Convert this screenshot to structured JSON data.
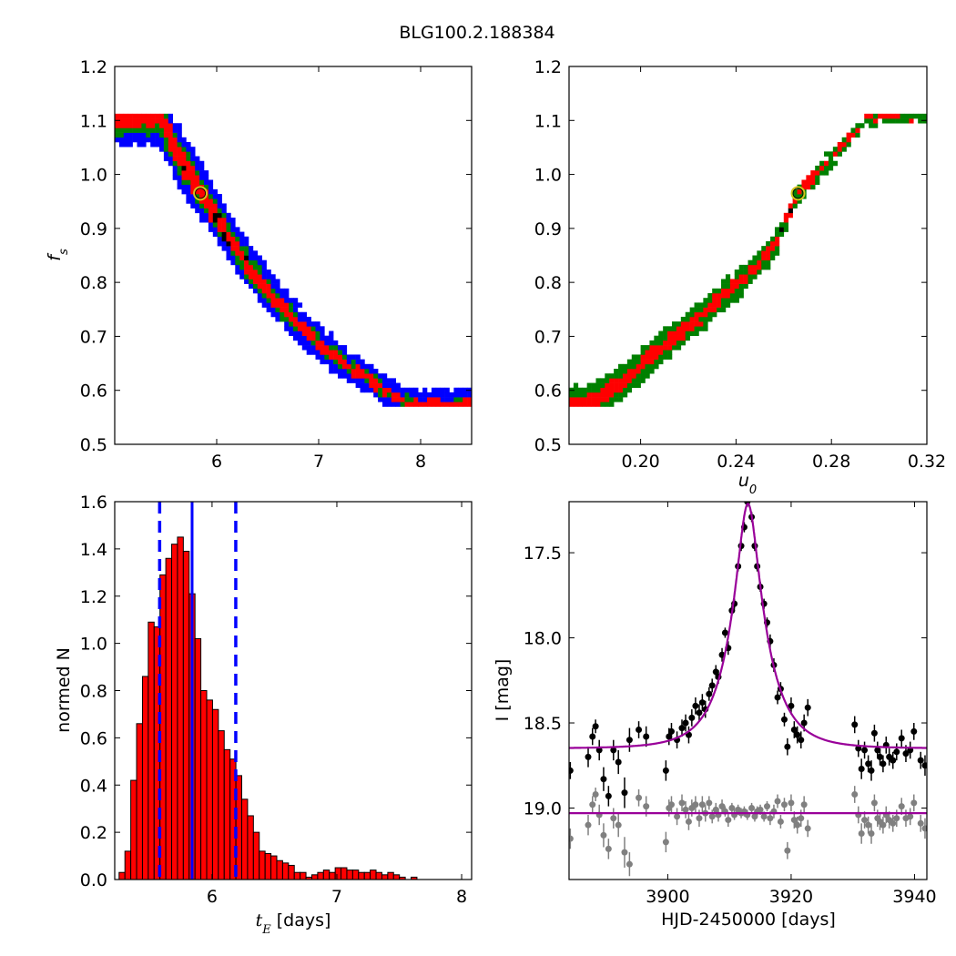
{
  "title": "BLG100.2.188384",
  "chart_data": [
    {
      "panel": "top-left",
      "type": "heatmap",
      "xlabel": "",
      "ylabel": "f_s",
      "xlim": [
        5.0,
        8.5
      ],
      "ylim": [
        0.5,
        1.2
      ],
      "xticks": [
        "6",
        "7",
        "8"
      ],
      "xtick_values": [
        6,
        7,
        8
      ],
      "yticks": [
        "0.5",
        "0.6",
        "0.7",
        "0.8",
        "0.9",
        "1.0",
        "1.1",
        "1.2"
      ],
      "ytick_values": [
        0.5,
        0.6,
        0.7,
        0.8,
        0.9,
        1.0,
        1.1,
        1.2
      ],
      "colors": {
        "outer": "#0000ff",
        "middle": "#008000",
        "inner": "#ff0000",
        "core": "#000000"
      },
      "band_centerline": [
        [
          5.44,
          1.11
        ],
        [
          5.6,
          1.04
        ],
        [
          5.85,
          0.965
        ],
        [
          6.1,
          0.89
        ],
        [
          6.35,
          0.82
        ],
        [
          6.6,
          0.76
        ],
        [
          6.85,
          0.71
        ],
        [
          7.1,
          0.67
        ],
        [
          7.4,
          0.63
        ],
        [
          7.7,
          0.595
        ],
        [
          7.9,
          0.575
        ]
      ],
      "best_fit": {
        "x": 5.84,
        "y": 0.965,
        "color": "#d4c51b"
      }
    },
    {
      "panel": "top-right",
      "type": "heatmap",
      "xlabel": "u_0",
      "ylabel": "",
      "xlim": [
        0.17,
        0.32
      ],
      "ylim": [
        0.5,
        1.2
      ],
      "xticks": [
        "0.20",
        "0.24",
        "0.28",
        "0.32"
      ],
      "xtick_values": [
        0.2,
        0.24,
        0.28,
        0.32
      ],
      "yticks": [
        "0.5",
        "0.6",
        "0.7",
        "0.8",
        "0.9",
        "1.0",
        "1.1",
        "1.2"
      ],
      "ytick_values": [
        0.5,
        0.6,
        0.7,
        0.8,
        0.9,
        1.0,
        1.1,
        1.2
      ],
      "colors": {
        "outer": "#0000ff",
        "middle": "#008000",
        "inner": "#ff0000",
        "core": "#000000"
      },
      "band_centerline": [
        [
          0.18,
          0.575
        ],
        [
          0.2,
          0.645
        ],
        [
          0.22,
          0.72
        ],
        [
          0.24,
          0.795
        ],
        [
          0.255,
          0.86
        ],
        [
          0.266,
          0.965
        ],
        [
          0.28,
          1.03
        ],
        [
          0.295,
          1.105
        ]
      ],
      "best_fit": {
        "x": 0.266,
        "y": 0.965,
        "color": "#d4c51b"
      }
    },
    {
      "panel": "bottom-left",
      "type": "bar",
      "xlabel": "t_E [days]",
      "ylabel": "normed N",
      "xlim": [
        5.22,
        8.08
      ],
      "ylim": [
        0.0,
        1.6
      ],
      "xticks": [
        "6",
        "7",
        "8"
      ],
      "xtick_values": [
        6,
        7,
        8
      ],
      "yticks": [
        "0.0",
        "0.2",
        "0.4",
        "0.6",
        "0.8",
        "1.0",
        "1.2",
        "1.4",
        "1.6"
      ],
      "ytick_values": [
        0.0,
        0.2,
        0.4,
        0.6,
        0.8,
        1.0,
        1.2,
        1.4,
        1.6
      ],
      "bin_start": 5.255,
      "bin_width": 0.0468,
      "values": [
        0.03,
        0.12,
        0.42,
        0.66,
        0.86,
        1.09,
        1.07,
        1.29,
        1.36,
        1.42,
        1.45,
        1.39,
        1.21,
        1.02,
        0.8,
        0.76,
        0.72,
        0.63,
        0.55,
        0.51,
        0.44,
        0.34,
        0.27,
        0.2,
        0.12,
        0.11,
        0.1,
        0.08,
        0.07,
        0.06,
        0.03,
        0.03,
        0.01,
        0.02,
        0.03,
        0.04,
        0.03,
        0.05,
        0.05,
        0.04,
        0.04,
        0.03,
        0.03,
        0.04,
        0.03,
        0.02,
        0.03,
        0.02,
        0.01,
        0.0,
        0.01
      ],
      "bar_color": "#ff0000",
      "median_line": 5.84,
      "interval_lines": [
        5.58,
        6.19
      ],
      "line_color": "#0000ff"
    },
    {
      "panel": "bottom-right",
      "type": "scatter",
      "xlabel": "HJD-2450000 [days]",
      "ylabel": "I [mag]",
      "xlim": [
        3884,
        3942
      ],
      "ylim": [
        19.42,
        17.2
      ],
      "yaxis_inverted": true,
      "xticks": [
        "3900",
        "3920",
        "3940"
      ],
      "xtick_values": [
        3900,
        3920,
        3940
      ],
      "yticks": [
        "17.5",
        "18.0",
        "18.5",
        "19.0"
      ],
      "ytick_values": [
        17.5,
        18.0,
        18.5,
        19.0
      ],
      "model": {
        "t0": 3913.0,
        "tE": 5.84,
        "u0": 0.266,
        "fs": 0.965,
        "I_base": 18.65,
        "color": "#990099"
      },
      "residual_baseline": 19.03,
      "series": [
        {
          "name": "",
          "color": "#000000",
          "points": [
            [
              3884.2,
              18.78,
              0.05
            ],
            [
              3887.1,
              18.7,
              0.06
            ],
            [
              3887.8,
              18.58,
              0.05
            ],
            [
              3888.3,
              18.52,
              0.04
            ],
            [
              3888.9,
              18.66,
              0.06
            ],
            [
              3889.6,
              18.83,
              0.07
            ],
            [
              3890.4,
              18.93,
              0.06
            ],
            [
              3891.2,
              18.66,
              0.06
            ],
            [
              3892.0,
              18.73,
              0.07
            ],
            [
              3893.0,
              18.91,
              0.09
            ],
            [
              3893.8,
              18.6,
              0.07
            ],
            [
              3895.3,
              18.54,
              0.05
            ],
            [
              3896.5,
              18.58,
              0.06
            ],
            [
              3899.7,
              18.78,
              0.06
            ],
            [
              3900.2,
              18.58,
              0.05
            ],
            [
              3900.6,
              18.55,
              0.05
            ],
            [
              3901.5,
              18.6,
              0.05
            ],
            [
              3902.3,
              18.53,
              0.05
            ],
            [
              3902.9,
              18.5,
              0.05
            ],
            [
              3903.4,
              18.57,
              0.05
            ],
            [
              3903.9,
              18.47,
              0.05
            ],
            [
              3904.5,
              18.4,
              0.05
            ],
            [
              3905.1,
              18.44,
              0.05
            ],
            [
              3905.6,
              18.38,
              0.05
            ],
            [
              3906.1,
              18.42,
              0.05
            ],
            [
              3906.7,
              18.33,
              0.04
            ],
            [
              3907.2,
              18.28,
              0.04
            ],
            [
              3907.8,
              18.2,
              0.04
            ],
            [
              3908.2,
              18.23,
              0.04
            ],
            [
              3908.8,
              18.1,
              0.04
            ],
            [
              3909.3,
              17.97,
              0.03
            ],
            [
              3909.8,
              18.06,
              0.04
            ],
            [
              3910.4,
              17.84,
              0.03
            ],
            [
              3910.8,
              17.8,
              0.03
            ],
            [
              3911.4,
              17.58,
              0.03
            ],
            [
              3911.9,
              17.46,
              0.03
            ],
            [
              3912.4,
              17.35,
              0.03
            ],
            [
              3912.9,
              17.2,
              0.03
            ],
            [
              3913.6,
              17.29,
              0.03
            ],
            [
              3914.1,
              17.46,
              0.03
            ],
            [
              3914.5,
              17.58,
              0.03
            ],
            [
              3915.0,
              17.7,
              0.03
            ],
            [
              3915.6,
              17.8,
              0.03
            ],
            [
              3916.1,
              17.91,
              0.03
            ],
            [
              3916.6,
              18.02,
              0.04
            ],
            [
              3917.2,
              18.16,
              0.04
            ],
            [
              3917.8,
              18.35,
              0.04
            ],
            [
              3918.3,
              18.3,
              0.04
            ],
            [
              3918.9,
              18.48,
              0.04
            ],
            [
              3919.4,
              18.64,
              0.05
            ],
            [
              3920.0,
              18.4,
              0.05
            ],
            [
              3920.5,
              18.54,
              0.05
            ],
            [
              3921.0,
              18.57,
              0.05
            ],
            [
              3921.6,
              18.6,
              0.05
            ],
            [
              3922.1,
              18.5,
              0.05
            ],
            [
              3922.7,
              18.41,
              0.05
            ],
            [
              3930.3,
              18.51,
              0.05
            ],
            [
              3930.9,
              18.65,
              0.05
            ],
            [
              3931.4,
              18.77,
              0.06
            ],
            [
              3931.9,
              18.66,
              0.05
            ],
            [
              3932.5,
              18.74,
              0.05
            ],
            [
              3933.0,
              18.78,
              0.06
            ],
            [
              3933.5,
              18.56,
              0.05
            ],
            [
              3934.0,
              18.66,
              0.05
            ],
            [
              3934.4,
              18.7,
              0.05
            ],
            [
              3934.9,
              18.74,
              0.05
            ],
            [
              3935.4,
              18.63,
              0.05
            ],
            [
              3935.9,
              18.7,
              0.05
            ],
            [
              3936.5,
              18.72,
              0.05
            ],
            [
              3937.1,
              18.67,
              0.05
            ],
            [
              3937.9,
              18.59,
              0.05
            ],
            [
              3938.6,
              18.68,
              0.05
            ],
            [
              3939.3,
              18.66,
              0.05
            ],
            [
              3939.9,
              18.55,
              0.05
            ],
            [
              3941.0,
              18.72,
              0.05
            ],
            [
              3941.7,
              18.75,
              0.06
            ]
          ]
        },
        {
          "name": "",
          "color": "#808080",
          "points": [
            [
              3884.2,
              19.18,
              0.06
            ],
            [
              3887.1,
              19.1,
              0.06
            ],
            [
              3887.8,
              18.98,
              0.05
            ],
            [
              3888.3,
              18.92,
              0.04
            ],
            [
              3888.9,
              19.04,
              0.06
            ],
            [
              3889.6,
              19.16,
              0.07
            ],
            [
              3890.4,
              19.24,
              0.06
            ],
            [
              3891.2,
              19.06,
              0.06
            ],
            [
              3892.0,
              19.1,
              0.07
            ],
            [
              3893.0,
              19.26,
              0.09
            ],
            [
              3893.8,
              19.33,
              0.07
            ],
            [
              3895.3,
              18.94,
              0.05
            ],
            [
              3896.5,
              18.99,
              0.06
            ],
            [
              3899.7,
              19.2,
              0.06
            ],
            [
              3900.2,
              19.0,
              0.05
            ],
            [
              3900.6,
              18.98,
              0.05
            ],
            [
              3901.5,
              19.05,
              0.05
            ],
            [
              3902.3,
              18.97,
              0.05
            ],
            [
              3902.9,
              19.01,
              0.05
            ],
            [
              3903.4,
              19.08,
              0.05
            ],
            [
              3903.9,
              19.0,
              0.05
            ],
            [
              3904.5,
              18.98,
              0.05
            ],
            [
              3905.1,
              19.06,
              0.05
            ],
            [
              3905.6,
              18.98,
              0.05
            ],
            [
              3906.1,
              19.03,
              0.05
            ],
            [
              3906.7,
              18.97,
              0.04
            ],
            [
              3907.2,
              19.05,
              0.04
            ],
            [
              3907.8,
              19.01,
              0.04
            ],
            [
              3908.2,
              19.04,
              0.04
            ],
            [
              3908.8,
              18.99,
              0.04
            ],
            [
              3909.3,
              19.02,
              0.03
            ],
            [
              3909.8,
              19.07,
              0.04
            ],
            [
              3910.4,
              19.0,
              0.03
            ],
            [
              3910.8,
              19.04,
              0.03
            ],
            [
              3911.4,
              19.01,
              0.03
            ],
            [
              3911.9,
              19.03,
              0.03
            ],
            [
              3912.4,
              19.02,
              0.03
            ],
            [
              3912.9,
              19.04,
              0.03
            ],
            [
              3913.6,
              19.0,
              0.03
            ],
            [
              3914.1,
              19.05,
              0.03
            ],
            [
              3914.5,
              19.02,
              0.03
            ],
            [
              3915.0,
              19.01,
              0.03
            ],
            [
              3915.6,
              19.05,
              0.03
            ],
            [
              3916.1,
              18.99,
              0.03
            ],
            [
              3916.6,
              19.06,
              0.04
            ],
            [
              3917.2,
              19.02,
              0.04
            ],
            [
              3917.8,
              18.96,
              0.04
            ],
            [
              3918.3,
              19.08,
              0.04
            ],
            [
              3918.9,
              18.98,
              0.04
            ],
            [
              3919.4,
              19.25,
              0.05
            ],
            [
              3920.0,
              18.97,
              0.05
            ],
            [
              3920.5,
              19.07,
              0.05
            ],
            [
              3921.0,
              19.1,
              0.05
            ],
            [
              3921.6,
              19.06,
              0.05
            ],
            [
              3922.1,
              18.98,
              0.05
            ],
            [
              3922.7,
              19.12,
              0.05
            ],
            [
              3930.3,
              18.92,
              0.05
            ],
            [
              3930.9,
              19.04,
              0.05
            ],
            [
              3931.4,
              19.15,
              0.06
            ],
            [
              3931.9,
              19.07,
              0.05
            ],
            [
              3932.5,
              19.1,
              0.05
            ],
            [
              3933.0,
              19.15,
              0.06
            ],
            [
              3933.5,
              18.97,
              0.05
            ],
            [
              3934.0,
              19.06,
              0.05
            ],
            [
              3934.4,
              19.08,
              0.05
            ],
            [
              3934.9,
              19.1,
              0.05
            ],
            [
              3935.4,
              19.04,
              0.05
            ],
            [
              3935.9,
              19.07,
              0.05
            ],
            [
              3936.5,
              19.09,
              0.05
            ],
            [
              3937.1,
              19.06,
              0.05
            ],
            [
              3937.9,
              18.99,
              0.05
            ],
            [
              3938.6,
              19.06,
              0.05
            ],
            [
              3939.3,
              19.05,
              0.05
            ],
            [
              3939.9,
              18.97,
              0.05
            ],
            [
              3941.0,
              19.09,
              0.05
            ],
            [
              3941.7,
              19.12,
              0.06
            ]
          ]
        }
      ]
    }
  ]
}
